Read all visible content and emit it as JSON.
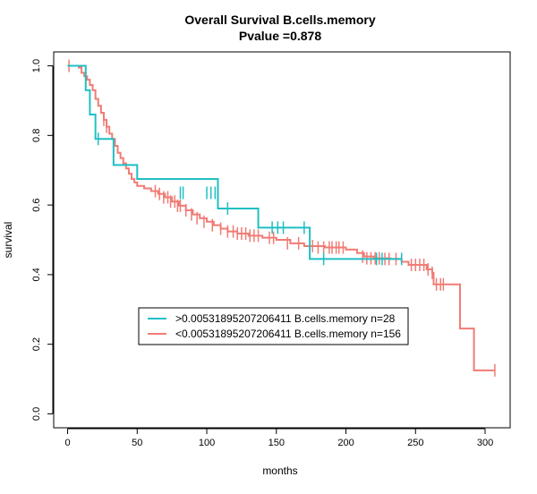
{
  "chart_data": {
    "type": "line",
    "title": "Overall Survival B.cells.memory",
    "subtitle": "Pvalue =0.878",
    "xlabel": "months",
    "ylabel": "survival",
    "xlim": [
      -10,
      318
    ],
    "ylim": [
      -0.04,
      1.04
    ],
    "x_ticks": [
      "0",
      "50",
      "100",
      "150",
      "200",
      "250",
      "300"
    ],
    "y_ticks": [
      "0.0",
      "0.2",
      "0.4",
      "0.6",
      "0.8",
      "1.0"
    ],
    "grid": false,
    "legend_position": "bottom-left",
    "series": [
      {
        "name": ">0.00531895207206411 B.cells.memory n=28",
        "color": "#1fbfc3",
        "steps": [
          [
            0,
            1.0
          ],
          [
            10,
            1.0
          ],
          [
            13,
            0.93
          ],
          [
            16,
            0.86
          ],
          [
            20,
            0.79
          ],
          [
            30,
            0.79
          ],
          [
            33,
            0.715
          ],
          [
            50,
            0.715
          ],
          [
            50,
            0.675
          ],
          [
            75,
            0.675
          ],
          [
            108,
            0.675
          ],
          [
            108,
            0.59
          ],
          [
            137,
            0.59
          ],
          [
            137,
            0.535
          ],
          [
            174,
            0.535
          ],
          [
            174,
            0.445
          ],
          [
            240,
            0.445
          ]
        ],
        "censor": [
          [
            22,
            0.79
          ],
          [
            81,
            0.635
          ],
          [
            83,
            0.635
          ],
          [
            100,
            0.635
          ],
          [
            103,
            0.635
          ],
          [
            106,
            0.635
          ],
          [
            115,
            0.59
          ],
          [
            147,
            0.535
          ],
          [
            151,
            0.535
          ],
          [
            155,
            0.535
          ],
          [
            170,
            0.535
          ],
          [
            184,
            0.445
          ],
          [
            222,
            0.445
          ],
          [
            226,
            0.445
          ],
          [
            240,
            0.445
          ]
        ]
      },
      {
        "name": "<0.00531895207206411 B.cells.memory n=156",
        "color": "#f07c75",
        "steps": [
          [
            0,
            1.0
          ],
          [
            5,
            1.0
          ],
          [
            8,
            0.995
          ],
          [
            10,
            0.98
          ],
          [
            12,
            0.97
          ],
          [
            14,
            0.96
          ],
          [
            16,
            0.945
          ],
          [
            18,
            0.93
          ],
          [
            20,
            0.905
          ],
          [
            22,
            0.885
          ],
          [
            24,
            0.865
          ],
          [
            26,
            0.845
          ],
          [
            28,
            0.825
          ],
          [
            30,
            0.805
          ],
          [
            32,
            0.79
          ],
          [
            34,
            0.77
          ],
          [
            36,
            0.75
          ],
          [
            38,
            0.735
          ],
          [
            40,
            0.72
          ],
          [
            42,
            0.705
          ],
          [
            44,
            0.69
          ],
          [
            46,
            0.675
          ],
          [
            48,
            0.665
          ],
          [
            50,
            0.655
          ],
          [
            55,
            0.648
          ],
          [
            60,
            0.64
          ],
          [
            65,
            0.632
          ],
          [
            70,
            0.622
          ],
          [
            75,
            0.61
          ],
          [
            80,
            0.598
          ],
          [
            85,
            0.585
          ],
          [
            90,
            0.573
          ],
          [
            95,
            0.562
          ],
          [
            100,
            0.552
          ],
          [
            105,
            0.542
          ],
          [
            110,
            0.532
          ],
          [
            115,
            0.524
          ],
          [
            122,
            0.518
          ],
          [
            130,
            0.512
          ],
          [
            140,
            0.506
          ],
          [
            150,
            0.5
          ],
          [
            160,
            0.49
          ],
          [
            170,
            0.482
          ],
          [
            185,
            0.478
          ],
          [
            200,
            0.472
          ],
          [
            208,
            0.462
          ],
          [
            213,
            0.452
          ],
          [
            220,
            0.447
          ],
          [
            232,
            0.445
          ],
          [
            240,
            0.437
          ],
          [
            245,
            0.428
          ],
          [
            258,
            0.415
          ],
          [
            262,
            0.405
          ],
          [
            263,
            0.372
          ],
          [
            270,
            0.372
          ],
          [
            282,
            0.372
          ],
          [
            282,
            0.245
          ],
          [
            292,
            0.245
          ],
          [
            292,
            0.125
          ],
          [
            307,
            0.125
          ]
        ],
        "censor": [
          [
            1,
            1.0
          ],
          [
            26,
            0.845
          ],
          [
            28,
            0.825
          ],
          [
            63,
            0.64
          ],
          [
            66,
            0.632
          ],
          [
            69,
            0.622
          ],
          [
            72,
            0.622
          ],
          [
            74,
            0.61
          ],
          [
            77,
            0.61
          ],
          [
            79,
            0.598
          ],
          [
            81,
            0.598
          ],
          [
            85,
            0.585
          ],
          [
            89,
            0.573
          ],
          [
            93,
            0.562
          ],
          [
            98,
            0.552
          ],
          [
            104,
            0.542
          ],
          [
            110,
            0.532
          ],
          [
            115,
            0.524
          ],
          [
            119,
            0.524
          ],
          [
            122,
            0.518
          ],
          [
            125,
            0.518
          ],
          [
            128,
            0.518
          ],
          [
            131,
            0.512
          ],
          [
            134,
            0.512
          ],
          [
            137,
            0.512
          ],
          [
            145,
            0.506
          ],
          [
            148,
            0.506
          ],
          [
            158,
            0.49
          ],
          [
            166,
            0.49
          ],
          [
            176,
            0.482
          ],
          [
            180,
            0.478
          ],
          [
            184,
            0.478
          ],
          [
            188,
            0.478
          ],
          [
            190,
            0.478
          ],
          [
            193,
            0.478
          ],
          [
            195,
            0.478
          ],
          [
            198,
            0.478
          ],
          [
            212,
            0.452
          ],
          [
            215,
            0.447
          ],
          [
            218,
            0.447
          ],
          [
            221,
            0.447
          ],
          [
            224,
            0.447
          ],
          [
            228,
            0.445
          ],
          [
            231,
            0.445
          ],
          [
            236,
            0.445
          ],
          [
            247,
            0.428
          ],
          [
            250,
            0.428
          ],
          [
            253,
            0.428
          ],
          [
            256,
            0.428
          ],
          [
            259,
            0.415
          ],
          [
            262,
            0.405
          ],
          [
            265,
            0.372
          ],
          [
            268,
            0.372
          ],
          [
            270,
            0.372
          ],
          [
            307,
            0.125
          ]
        ]
      }
    ]
  }
}
